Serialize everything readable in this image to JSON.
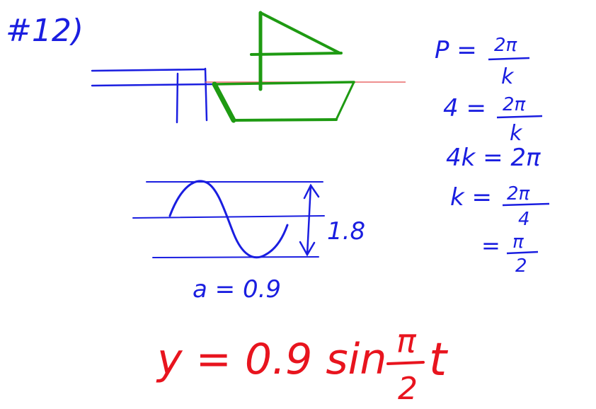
{
  "problem_number": "#12)",
  "colors": {
    "ink_blue": "#1a1ee0",
    "ink_green": "#1e9a12",
    "ink_red": "#e8141e",
    "water_line": "#e86a6a"
  },
  "period_work": {
    "line1": {
      "lhs": "P =",
      "num": "2π",
      "den": "k"
    },
    "line2": {
      "lhs": "4 =",
      "num": "2π",
      "den": "k"
    },
    "line3": {
      "text": "4k = 2π"
    },
    "line4": {
      "lhs": "k =",
      "num": "2π",
      "den": "4"
    },
    "line5": {
      "lhs": "=",
      "num": "π",
      "den": "2"
    }
  },
  "amplitude": {
    "range_label": "1.8",
    "result": "a = 0.9"
  },
  "answer": {
    "lhs": "y = 0.9 sin",
    "num": "π",
    "den": "2",
    "var": "t"
  }
}
